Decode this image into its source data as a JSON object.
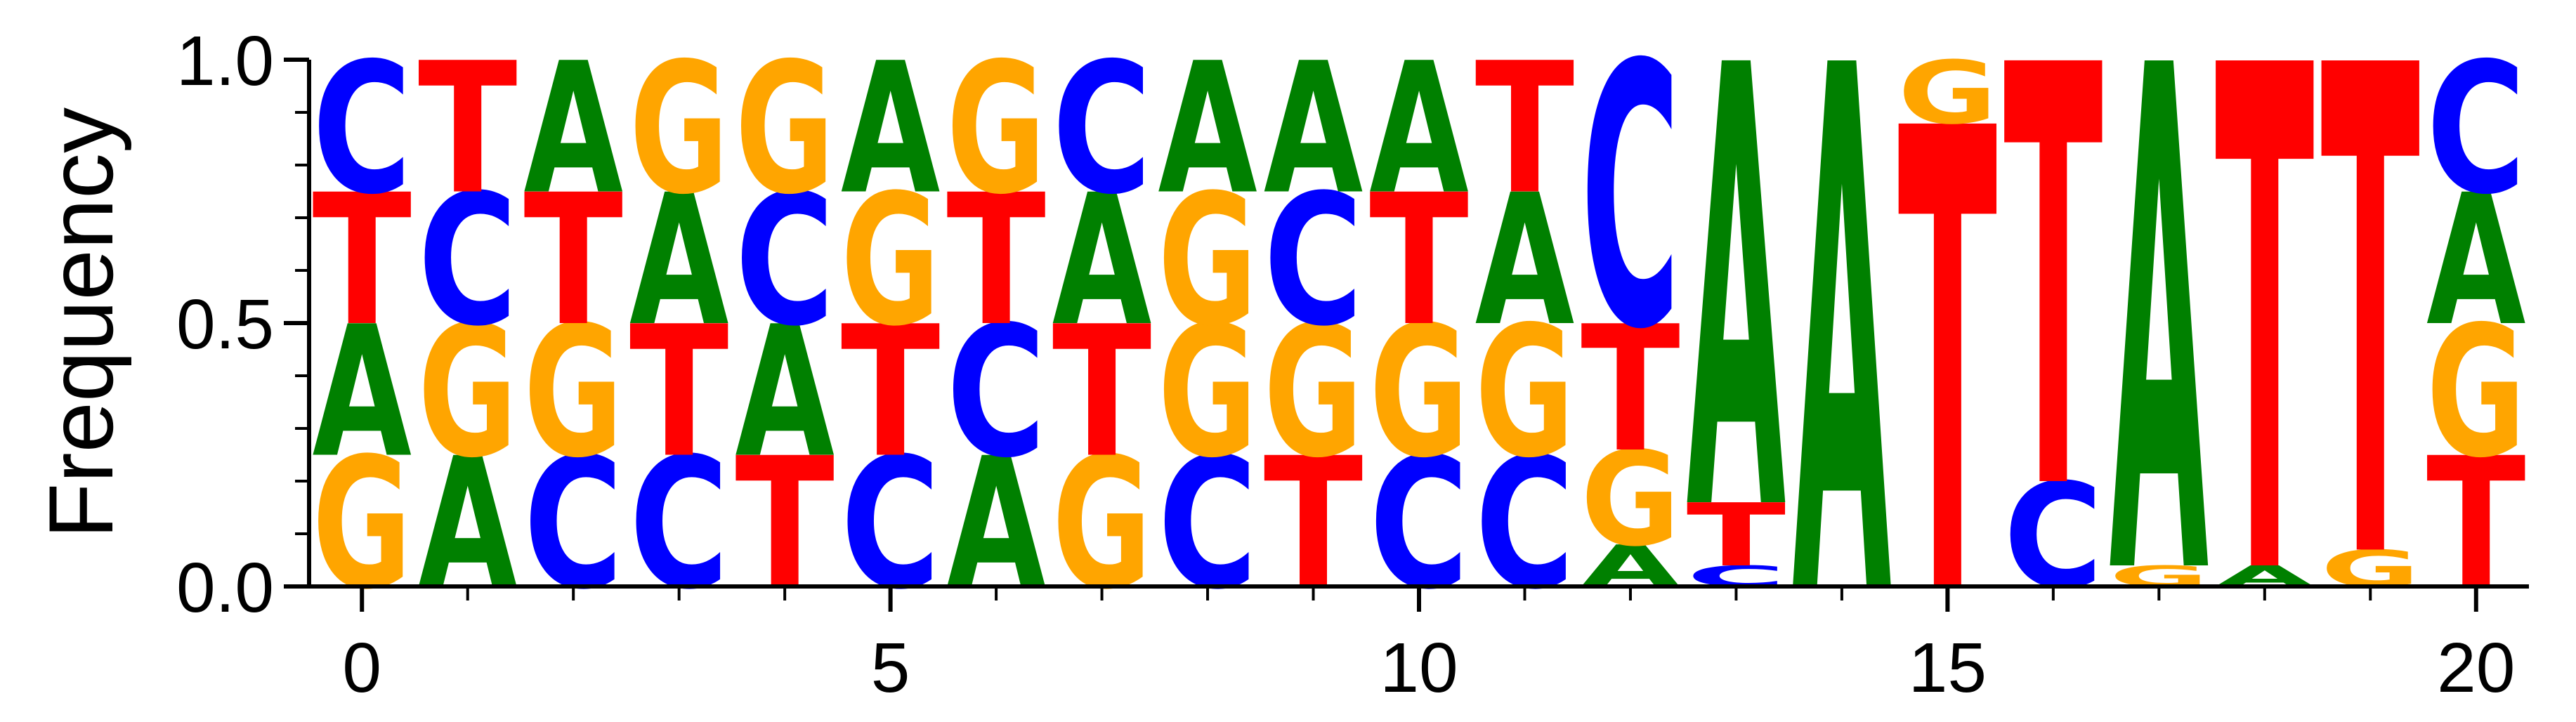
{
  "chart_data": {
    "type": "sequence-logo",
    "ylabel": "Frequency",
    "xlabel": "",
    "title": "",
    "xlim": [
      -0.5,
      20.5
    ],
    "ylim": [
      0,
      1
    ],
    "x_ticks": [
      0,
      5,
      10,
      15,
      20
    ],
    "x_tick_labels": [
      "0",
      "5",
      "10",
      "15",
      "20"
    ],
    "x_minor_ticks": [
      1,
      2,
      3,
      4,
      6,
      7,
      8,
      9,
      11,
      12,
      13,
      14,
      16,
      17,
      18,
      19
    ],
    "y_ticks": [
      0.0,
      0.5,
      1.0
    ],
    "y_tick_labels": [
      "0.0",
      "0.5",
      "1.0"
    ],
    "y_minor_ticks": [
      0.1,
      0.2,
      0.3,
      0.4,
      0.6,
      0.7,
      0.8,
      0.9
    ],
    "colors": {
      "A": "#008000",
      "C": "#0000ff",
      "G": "#ffa500",
      "T": "#ff0000"
    },
    "positions": [
      {
        "x": 0,
        "stack": [
          [
            "G",
            0.25
          ],
          [
            "A",
            0.25
          ],
          [
            "T",
            0.25
          ],
          [
            "C",
            0.25
          ]
        ]
      },
      {
        "x": 1,
        "stack": [
          [
            "A",
            0.25
          ],
          [
            "G",
            0.25
          ],
          [
            "C",
            0.25
          ],
          [
            "T",
            0.25
          ]
        ]
      },
      {
        "x": 2,
        "stack": [
          [
            "C",
            0.25
          ],
          [
            "G",
            0.25
          ],
          [
            "T",
            0.25
          ],
          [
            "A",
            0.25
          ]
        ]
      },
      {
        "x": 3,
        "stack": [
          [
            "C",
            0.25
          ],
          [
            "T",
            0.25
          ],
          [
            "A",
            0.25
          ],
          [
            "G",
            0.25
          ]
        ]
      },
      {
        "x": 4,
        "stack": [
          [
            "T",
            0.25
          ],
          [
            "A",
            0.25
          ],
          [
            "C",
            0.25
          ],
          [
            "G",
            0.25
          ]
        ]
      },
      {
        "x": 5,
        "stack": [
          [
            "C",
            0.25
          ],
          [
            "T",
            0.25
          ],
          [
            "G",
            0.25
          ],
          [
            "A",
            0.25
          ]
        ]
      },
      {
        "x": 6,
        "stack": [
          [
            "A",
            0.25
          ],
          [
            "C",
            0.25
          ],
          [
            "T",
            0.25
          ],
          [
            "G",
            0.25
          ]
        ]
      },
      {
        "x": 7,
        "stack": [
          [
            "G",
            0.25
          ],
          [
            "T",
            0.25
          ],
          [
            "A",
            0.25
          ],
          [
            "C",
            0.25
          ]
        ]
      },
      {
        "x": 8,
        "stack": [
          [
            "C",
            0.25
          ],
          [
            "G",
            0.25
          ],
          [
            "G",
            0.25
          ],
          [
            "A",
            0.25
          ]
        ]
      },
      {
        "x": 9,
        "stack": [
          [
            "T",
            0.25
          ],
          [
            "G",
            0.25
          ],
          [
            "C",
            0.25
          ],
          [
            "A",
            0.25
          ]
        ]
      },
      {
        "x": 10,
        "stack": [
          [
            "C",
            0.25
          ],
          [
            "G",
            0.25
          ],
          [
            "T",
            0.25
          ],
          [
            "A",
            0.25
          ]
        ]
      },
      {
        "x": 11,
        "stack": [
          [
            "C",
            0.25
          ],
          [
            "G",
            0.25
          ],
          [
            "A",
            0.25
          ],
          [
            "T",
            0.25
          ]
        ]
      },
      {
        "x": 12,
        "stack": [
          [
            "A",
            0.08
          ],
          [
            "G",
            0.18
          ],
          [
            "T",
            0.24
          ],
          [
            "C",
            0.5
          ]
        ]
      },
      {
        "x": 13,
        "stack": [
          [
            "C",
            0.04
          ],
          [
            "T",
            0.12
          ],
          [
            "A",
            0.84
          ]
        ]
      },
      {
        "x": 14,
        "stack": [
          [
            "A",
            1.0
          ]
        ]
      },
      {
        "x": 15,
        "stack": [
          [
            "T",
            0.88
          ],
          [
            "G",
            0.12
          ]
        ]
      },
      {
        "x": 16,
        "stack": [
          [
            "C",
            0.2
          ],
          [
            "T",
            0.8
          ]
        ]
      },
      {
        "x": 17,
        "stack": [
          [
            "G",
            0.04
          ],
          [
            "A",
            0.96
          ]
        ]
      },
      {
        "x": 18,
        "stack": [
          [
            "A",
            0.04
          ],
          [
            "T",
            0.96
          ]
        ]
      },
      {
        "x": 19,
        "stack": [
          [
            "G",
            0.07
          ],
          [
            "T",
            0.93
          ]
        ]
      },
      {
        "x": 20,
        "stack": [
          [
            "T",
            0.25
          ],
          [
            "G",
            0.25
          ],
          [
            "A",
            0.25
          ],
          [
            "C",
            0.25
          ]
        ]
      }
    ]
  }
}
